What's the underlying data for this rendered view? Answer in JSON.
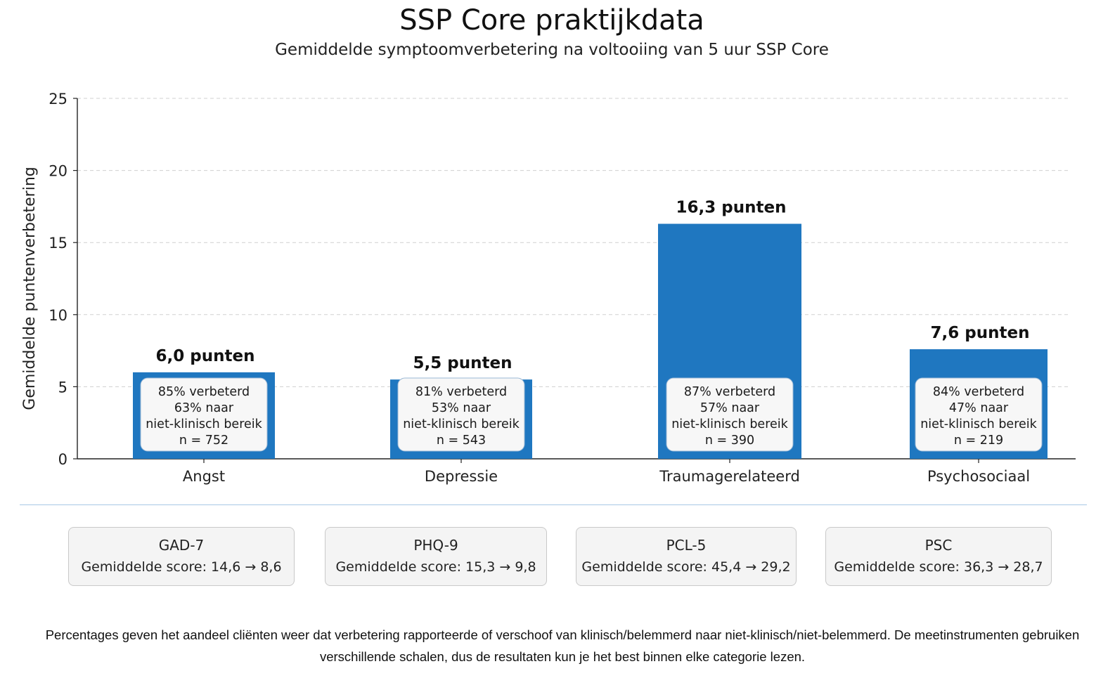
{
  "header": {
    "title": "SSP Core praktijkdata",
    "subtitle": "Gemiddelde symptoomverbetering na voltooiing van 5 uur SSP Core"
  },
  "chart_data": {
    "type": "bar",
    "ylabel": "Gemiddelde puntenverbetering",
    "ylim": [
      0,
      25
    ],
    "yticks": [
      0,
      5,
      10,
      15,
      20,
      25
    ],
    "grid": true,
    "categories": [
      "Angst",
      "Depressie",
      "Traumagerelateerd",
      "Psychosociaal"
    ],
    "values": [
      6.0,
      5.5,
      16.3,
      7.6
    ],
    "value_labels": [
      "6,0 punten",
      "5,5 punten",
      "16,3 punten",
      "7,6 punten"
    ],
    "bar_color": "#1f77c0",
    "annotations": [
      [
        "85% verbeterd",
        "63% naar",
        "niet-klinisch bereik",
        "n = 752"
      ],
      [
        "81% verbeterd",
        "53% naar",
        "niet-klinisch bereik",
        "n = 543"
      ],
      [
        "87% verbeterd",
        "57% naar",
        "niet-klinisch bereik",
        "n = 390"
      ],
      [
        "84% verbeterd",
        "47% naar",
        "niet-klinisch bereik",
        "n = 219"
      ]
    ]
  },
  "cards": [
    {
      "name": "GAD-7",
      "score": "Gemiddelde score: 14,6 → 8,6"
    },
    {
      "name": "PHQ-9",
      "score": "Gemiddelde score: 15,3 → 9,8"
    },
    {
      "name": "PCL-5",
      "score": "Gemiddelde score: 45,4 → 29,2"
    },
    {
      "name": "PSC",
      "score": "Gemiddelde score: 36,3 → 28,7"
    }
  ],
  "footnote": "Percentages geven het aandeel cliënten weer dat verbetering rapporteerde of verschoof van klinisch/belemmerd naar niet-klinisch/niet-belemmerd. De meetinstrumenten gebruiken verschillende schalen, dus de resultaten kun je het best binnen elke categorie lezen."
}
